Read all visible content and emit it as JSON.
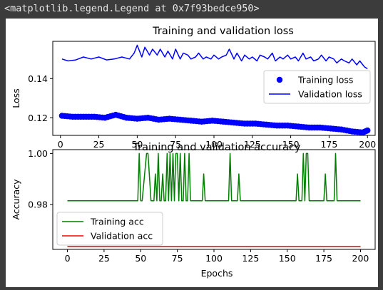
{
  "output": {
    "repr_text": "<matplotlib.legend.Legend at 0x7f93bedce950>"
  },
  "colors": {
    "page_bg": "#3c3c3c",
    "output_text": "#e6e6e6",
    "training_loss": "#0000ff",
    "validation_loss": "#0000ff",
    "training_acc": "#008000",
    "validation_acc": "#ff0000"
  },
  "chart_data": [
    {
      "type": "line",
      "title": "Training and validation loss",
      "xlabel": "",
      "ylabel": "Loss",
      "xlim": [
        -5,
        205
      ],
      "ylim": [
        0.111,
        0.159
      ],
      "x_ticks": [
        0,
        25,
        50,
        75,
        100,
        125,
        150,
        175,
        200
      ],
      "y_ticks": [
        0.12,
        0.14
      ],
      "y_tick_labels": [
        "0.12",
        "0.14"
      ],
      "grid": false,
      "legend": {
        "placement": "right",
        "entries": [
          {
            "label": "Training loss",
            "style": "marker"
          },
          {
            "label": "Validation loss",
            "style": "line"
          }
        ]
      },
      "series": [
        {
          "name": "Training loss",
          "style": "dots",
          "color": "#0000ff",
          "x": [
            1,
            8,
            15,
            22,
            29,
            36,
            43,
            50,
            57,
            64,
            71,
            78,
            85,
            92,
            99,
            106,
            113,
            120,
            127,
            134,
            141,
            148,
            155,
            162,
            169,
            176,
            183,
            190,
            197,
            200
          ],
          "y": [
            0.121,
            0.1205,
            0.1205,
            0.1205,
            0.12,
            0.1215,
            0.12,
            0.1195,
            0.12,
            0.119,
            0.1195,
            0.119,
            0.1185,
            0.118,
            0.1185,
            0.118,
            0.1175,
            0.117,
            0.117,
            0.1165,
            0.116,
            0.116,
            0.1155,
            0.115,
            0.115,
            0.1145,
            0.114,
            0.113,
            0.1125,
            0.1135
          ]
        },
        {
          "name": "Validation loss",
          "style": "line",
          "color": "#0000ff",
          "x": [
            1,
            5,
            10,
            15,
            20,
            25,
            30,
            35,
            40,
            45,
            48,
            50,
            53,
            55,
            58,
            60,
            63,
            65,
            68,
            70,
            73,
            75,
            78,
            80,
            83,
            85,
            88,
            90,
            93,
            95,
            98,
            100,
            103,
            105,
            108,
            110,
            113,
            115,
            118,
            120,
            123,
            125,
            128,
            130,
            133,
            135,
            138,
            140,
            143,
            145,
            148,
            150,
            153,
            155,
            158,
            160,
            163,
            165,
            168,
            170,
            173,
            175,
            178,
            180,
            183,
            185,
            188,
            190,
            193,
            195,
            198,
            200
          ],
          "y": [
            0.15,
            0.149,
            0.1495,
            0.151,
            0.15,
            0.151,
            0.1495,
            0.15,
            0.151,
            0.15,
            0.153,
            0.157,
            0.151,
            0.156,
            0.152,
            0.155,
            0.152,
            0.155,
            0.151,
            0.154,
            0.15,
            0.155,
            0.15,
            0.153,
            0.152,
            0.15,
            0.151,
            0.153,
            0.15,
            0.151,
            0.15,
            0.152,
            0.15,
            0.151,
            0.152,
            0.155,
            0.15,
            0.153,
            0.149,
            0.152,
            0.15,
            0.151,
            0.149,
            0.152,
            0.151,
            0.15,
            0.153,
            0.149,
            0.151,
            0.15,
            0.152,
            0.15,
            0.151,
            0.149,
            0.153,
            0.15,
            0.151,
            0.149,
            0.15,
            0.152,
            0.149,
            0.151,
            0.15,
            0.148,
            0.15,
            0.149,
            0.148,
            0.15,
            0.147,
            0.149,
            0.146,
            0.145
          ]
        }
      ]
    },
    {
      "type": "line",
      "title": "Training and validation accuracy",
      "xlabel": "Epochs",
      "ylabel": "Accuracy",
      "xlim": [
        -10,
        210
      ],
      "ylim": [
        0.9625,
        1.0015
      ],
      "x_ticks": [
        0,
        25,
        50,
        75,
        100,
        125,
        150,
        175,
        200
      ],
      "y_ticks": [
        0.98,
        1.0
      ],
      "y_tick_labels": [
        "0.98",
        "1.00"
      ],
      "grid": false,
      "legend": {
        "placement": "lower-left",
        "entries": [
          {
            "label": "Training acc",
            "style": "line"
          },
          {
            "label": "Validation acc",
            "style": "line"
          }
        ]
      },
      "series": [
        {
          "name": "Training acc",
          "style": "line",
          "color": "#008000",
          "x": [
            0,
            48,
            49,
            50,
            51,
            54,
            55,
            57,
            58,
            59,
            60,
            61,
            62,
            63,
            64,
            65,
            66,
            67,
            68,
            69,
            70,
            71,
            72,
            73,
            74,
            75,
            76,
            77,
            78,
            79,
            80,
            81,
            82,
            83,
            84,
            92,
            93,
            94,
            110,
            111,
            112,
            116,
            117,
            118,
            156,
            157,
            158,
            160,
            161,
            162,
            163,
            164,
            165,
            175,
            176,
            177,
            182,
            183,
            184,
            200
          ],
          "x_dummy": null,
          "y": [
            0.9815,
            0.9815,
            1.0,
            0.9815,
            0.9815,
            1.0,
            1.0,
            0.9815,
            0.9815,
            0.9815,
            0.992,
            0.9815,
            1.0,
            0.9815,
            0.9815,
            0.992,
            0.9815,
            0.9815,
            1.0,
            0.9815,
            1.0,
            0.9815,
            1.0,
            0.9815,
            1.0,
            1.0,
            0.9815,
            1.0,
            0.9815,
            0.9815,
            1.0,
            0.9815,
            0.9815,
            1.0,
            0.9815,
            0.9815,
            0.992,
            0.9815,
            0.9815,
            1.0,
            0.9815,
            0.9815,
            0.992,
            0.9815,
            0.9815,
            0.992,
            0.9815,
            0.9815,
            1.0,
            0.9815,
            1.0,
            1.0,
            0.9815,
            0.9815,
            0.992,
            0.9815,
            0.9815,
            1.0,
            0.9815,
            0.9815
          ]
        },
        {
          "name": "Validation acc",
          "style": "line",
          "color": "#ff0000",
          "x": [
            0,
            200
          ],
          "y": [
            0.9637,
            0.9637
          ]
        }
      ]
    }
  ]
}
